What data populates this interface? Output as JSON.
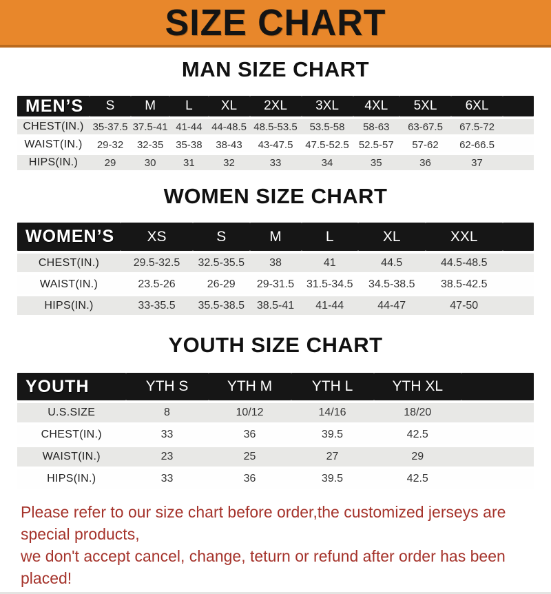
{
  "banner": {
    "title": "SIZE CHART",
    "bg_color": "#E8872B",
    "border_color": "#BA6A1E"
  },
  "colors": {
    "header_bar": "#161616",
    "row_gray": "#E8E8E6",
    "note_red": "#A5332B"
  },
  "sections": [
    {
      "heading": "MAN SIZE CHART",
      "table": {
        "header_label": "MEN’S",
        "columns": [
          "S",
          "M",
          "L",
          "XL",
          "2XL",
          "3XL",
          "4XL",
          "5XL",
          "6XL"
        ],
        "rows": [
          {
            "label": "CHEST(IN.)",
            "values": [
              "35-37.5",
              "37.5-41",
              "41-44",
              "44-48.5",
              "48.5-53.5",
              "53.5-58",
              "58-63",
              "63-67.5",
              "67.5-72"
            ]
          },
          {
            "label": "WAIST(IN.)",
            "values": [
              "29-32",
              "32-35",
              "35-38",
              "38-43",
              "43-47.5",
              "47.5-52.5",
              "52.5-57",
              "57-62",
              "62-66.5"
            ]
          },
          {
            "label": "HIPS(IN.)",
            "values": [
              "29",
              "30",
              "31",
              "32",
              "33",
              "34",
              "35",
              "36",
              "37"
            ]
          }
        ]
      }
    },
    {
      "heading": "WOMEN SIZE CHART",
      "table": {
        "header_label": "WOMEN’S",
        "columns": [
          "XS",
          "S",
          "M",
          "L",
          "XL",
          "XXL"
        ],
        "rows": [
          {
            "label": "CHEST(IN.)",
            "values": [
              "29.5-32.5",
              "32.5-35.5",
              "38",
              "41",
              "44.5",
              "44.5-48.5"
            ]
          },
          {
            "label": "WAIST(IN.)",
            "values": [
              "23.5-26",
              "26-29",
              "29-31.5",
              "31.5-34.5",
              "34.5-38.5",
              "38.5-42.5"
            ]
          },
          {
            "label": "HIPS(IN.)",
            "values": [
              "33-35.5",
              "35.5-38.5",
              "38.5-41",
              "41-44",
              "44-47",
              "47-50"
            ]
          }
        ]
      }
    },
    {
      "heading": "YOUTH SIZE CHART",
      "table": {
        "header_label": "YOUTH",
        "columns": [
          "YTH S",
          "YTH M",
          "YTH L",
          "YTH XL"
        ],
        "rows": [
          {
            "label": "U.S.SIZE",
            "values": [
              "8",
              "10/12",
              "14/16",
              "18/20"
            ]
          },
          {
            "label": "CHEST(IN.)",
            "values": [
              "33",
              "36",
              "39.5",
              "42.5"
            ]
          },
          {
            "label": "WAIST(IN.)",
            "values": [
              "23",
              "25",
              "27",
              "29"
            ]
          },
          {
            "label": "HIPS(IN.)",
            "values": [
              "33",
              "36",
              "39.5",
              "42.5"
            ]
          }
        ]
      }
    }
  ],
  "footer": {
    "line1": "Please refer to our size chart before order,the customized jerseys are special products,",
    "line2": "we don't accept cancel, change, teturn or refund after order has been placed!"
  }
}
